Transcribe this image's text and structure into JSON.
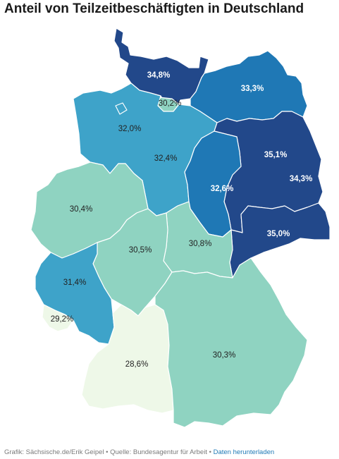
{
  "title": "Anteil von Teilzeitbeschäftigten in Deutschland",
  "footer": {
    "credit": "Grafik: Sächsische.de/Erik Geipel",
    "source": "Quelle: Bundesagentur für Arbeit",
    "separator": "•",
    "download_link": "Daten herunterladen"
  },
  "colors": {
    "darkest": "#22488a",
    "dark": "#1f78b5",
    "medium": "#3ea3c9",
    "light": "#8fd3c1",
    "lightest": "#eef8e8"
  },
  "regions": [
    {
      "label": "34,8%",
      "value": 34.8,
      "tier": "darkest"
    },
    {
      "label": "33,3%",
      "value": 33.3,
      "tier": "dark"
    },
    {
      "label": "30,2%",
      "value": 30.2,
      "tier": "light"
    },
    {
      "label": "32,0%",
      "value": 32.0,
      "tier": "medium"
    },
    {
      "label": "32,4%",
      "value": 32.4,
      "tier": "medium"
    },
    {
      "label": "35,1%",
      "value": 35.1,
      "tier": "darkest"
    },
    {
      "label": "34,3%",
      "value": 34.3,
      "tier": "darkest"
    },
    {
      "label": "32,6%",
      "value": 32.6,
      "tier": "dark"
    },
    {
      "label": "30,4%",
      "value": 30.4,
      "tier": "light"
    },
    {
      "label": "35,0%",
      "value": 35.0,
      "tier": "darkest"
    },
    {
      "label": "30,5%",
      "value": 30.5,
      "tier": "light"
    },
    {
      "label": "30,8%",
      "value": 30.8,
      "tier": "light"
    },
    {
      "label": "31,4%",
      "value": 31.4,
      "tier": "medium"
    },
    {
      "label": "29,2%",
      "value": 29.2,
      "tier": "lightest"
    },
    {
      "label": "28,6%",
      "value": 28.6,
      "tier": "lightest"
    },
    {
      "label": "30,3%",
      "value": 30.3,
      "tier": "light"
    }
  ]
}
